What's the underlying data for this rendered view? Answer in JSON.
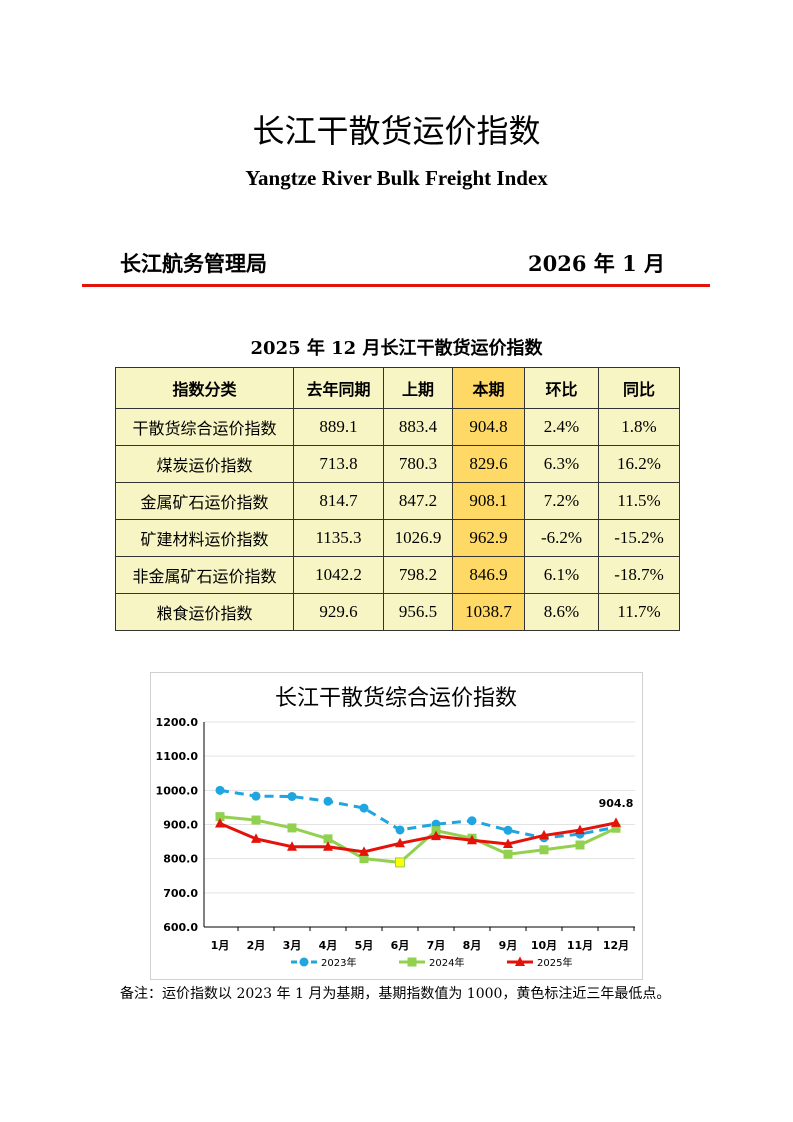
{
  "header": {
    "title": "长江干散货运价指数",
    "subtitle": "Yangtze River Bulk Freight Index",
    "org": "长江航务管理局",
    "date": "2026 年 1 月"
  },
  "table": {
    "title": "2025 年 12 月长江干散货运价指数",
    "columns": [
      "指数分类",
      "去年同期",
      "上期",
      "本期",
      "环比",
      "同比"
    ],
    "rows": [
      [
        "干散货综合运价指数",
        "889.1",
        "883.4",
        "904.8",
        "2.4%",
        "1.8%"
      ],
      [
        "煤炭运价指数",
        "713.8",
        "780.3",
        "829.6",
        "6.3%",
        "16.2%"
      ],
      [
        "金属矿石运价指数",
        "814.7",
        "847.2",
        "908.1",
        "7.2%",
        "11.5%"
      ],
      [
        "矿建材料运价指数",
        "1135.3",
        "1026.9",
        "962.9",
        "-6.2%",
        "-15.2%"
      ],
      [
        "非金属矿石运价指数",
        "1042.2",
        "798.2",
        "846.9",
        "6.1%",
        "-18.7%"
      ],
      [
        "粮食运价指数",
        "929.6",
        "956.5",
        "1038.7",
        "8.6%",
        "11.7%"
      ]
    ]
  },
  "chart_data": {
    "type": "line",
    "title": "长江干散货综合运价指数",
    "categories": [
      "1月",
      "2月",
      "3月",
      "4月",
      "5月",
      "6月",
      "7月",
      "8月",
      "9月",
      "10月",
      "11月",
      "12月"
    ],
    "ylim": [
      600,
      1200
    ],
    "yticks": [
      "600.0",
      "700.0",
      "800.0",
      "900.0",
      "1000.0",
      "1100.0",
      "1200.0"
    ],
    "series": [
      {
        "name": "2023年",
        "color": "#1fa5e0",
        "marker": "circle",
        "dashed": true,
        "values": [
          1000,
          983,
          982,
          968,
          948,
          884,
          901,
          911,
          883,
          861,
          872,
          892
        ]
      },
      {
        "name": "2024年",
        "color": "#92d050",
        "marker": "square",
        "dashed": false,
        "values": [
          923,
          913,
          890,
          858,
          800,
          789,
          882,
          860,
          813,
          826,
          840,
          889.1
        ]
      },
      {
        "name": "2025年",
        "color": "#e3120b",
        "marker": "triangle",
        "dashed": false,
        "values": [
          903,
          858,
          835,
          835,
          820,
          845,
          866,
          854,
          843,
          868,
          883.4,
          904.8
        ]
      }
    ],
    "lowest_point": {
      "series": "2024年",
      "category": "6月",
      "color": "#ffff00"
    },
    "annotation": "904.8",
    "legend": "bottom"
  },
  "note": "备注：运价指数以 2023 年 1 月为基期，基期指数值为 1000，黄色标注近三年最低点。"
}
